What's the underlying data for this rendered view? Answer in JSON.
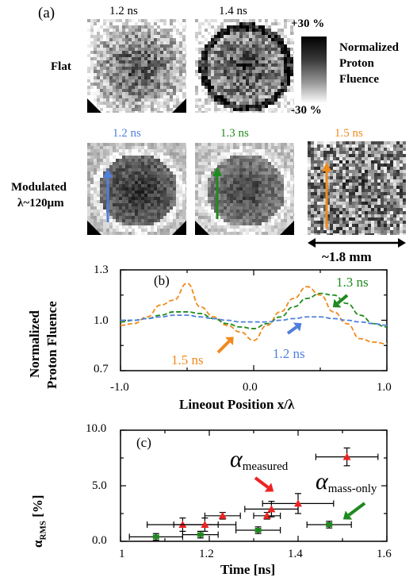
{
  "figure": {
    "panel_a": {
      "label": "(a)",
      "flat_label": "Flat",
      "modulated_label_line1": "Modulated",
      "modulated_label_line2": "λ~120μm",
      "flat_times": [
        "1.2 ns",
        "1.4 ns"
      ],
      "mod_times": [
        "1.2 ns",
        "1.3 ns",
        "1.5 ns"
      ],
      "colorbar_top": "+30 %",
      "colorbar_bottom": "-30 %",
      "colorbar_title": [
        "Normalized",
        "Proton",
        "Fluence"
      ],
      "scale_label": "~1.8 mm",
      "colors": {
        "blue": "#4f7fdc",
        "green": "#1e8a1e",
        "orange": "#f08a1e"
      }
    },
    "panel_b": {
      "label": "(b)",
      "ylabel_line1": "Normalized",
      "ylabel_line2": "Proton Fluence",
      "xlabel": "Lineout Position x/λ",
      "yticks": [
        "1.3",
        "1.0",
        "0.7"
      ],
      "xticks": [
        "-1.0",
        "0.0",
        "1.0"
      ],
      "annotations": [
        "1.3 ns",
        "1.5 ns",
        "1.2 ns"
      ]
    },
    "panel_c": {
      "label": "(c)",
      "ylabel": "α",
      "ylabel_sub": "RMS",
      "ylabel_unit": "[%]",
      "xlabel": "Time [ns]",
      "yticks": [
        "10.0",
        "5.0",
        "0.0"
      ],
      "xticks": [
        "1",
        "1.2",
        "1.4",
        "1.6"
      ],
      "ann_measured": "α",
      "ann_measured_sub": "measured",
      "ann_mass": "α",
      "ann_mass_sub": "mass-only"
    }
  },
  "chart_data": [
    {
      "type": "line",
      "panel": "(b)",
      "xlabel": "Lineout Position x/λ",
      "ylabel": "Normalized Proton Fluence",
      "xlim": [
        -1.0,
        1.0
      ],
      "ylim": [
        0.7,
        1.3
      ],
      "x": [
        -1.0,
        -0.9,
        -0.8,
        -0.7,
        -0.6,
        -0.5,
        -0.4,
        -0.3,
        -0.2,
        -0.1,
        0.0,
        0.1,
        0.2,
        0.3,
        0.4,
        0.5,
        0.6,
        0.7,
        0.8,
        0.9,
        1.0
      ],
      "series": [
        {
          "name": "1.5 ns",
          "color": "#f08a1e",
          "values": [
            0.97,
            0.98,
            1.02,
            1.09,
            1.12,
            1.22,
            1.08,
            1.02,
            0.97,
            0.93,
            0.88,
            0.97,
            1.05,
            1.13,
            1.2,
            1.15,
            1.05,
            0.98,
            0.89,
            0.87,
            0.86
          ]
        },
        {
          "name": "1.3 ns",
          "color": "#1e8a1e",
          "values": [
            0.99,
            1.0,
            1.01,
            1.03,
            1.05,
            1.05,
            1.04,
            1.01,
            0.98,
            0.96,
            0.95,
            0.98,
            1.02,
            1.08,
            1.13,
            1.16,
            1.15,
            1.1,
            1.03,
            0.98,
            0.96
          ]
        },
        {
          "name": "1.2 ns",
          "color": "#4f7fdc",
          "values": [
            1.0,
            1.0,
            1.01,
            1.02,
            1.03,
            1.03,
            1.02,
            1.01,
            1.0,
            0.99,
            0.99,
            0.99,
            1.0,
            1.01,
            1.02,
            1.02,
            1.01,
            1.0,
            0.99,
            0.98,
            0.97
          ]
        }
      ]
    },
    {
      "type": "scatter",
      "panel": "(c)",
      "xlabel": "Time [ns]",
      "ylabel": "αRMS [%]",
      "xlim": [
        1.0,
        1.6
      ],
      "ylim": [
        0.0,
        10.0
      ],
      "series": [
        {
          "name": "αmeasured",
          "color": "#ee2222",
          "marker": "triangle",
          "points": [
            {
              "x": 1.14,
              "y": 1.5,
              "xerr": 0.08,
              "yerr": 0.6
            },
            {
              "x": 1.19,
              "y": 1.5,
              "xerr": 0.07,
              "yerr": 0.6
            },
            {
              "x": 1.23,
              "y": 2.3,
              "xerr": 0.04,
              "yerr": 0.3
            },
            {
              "x": 1.33,
              "y": 2.3,
              "xerr": 0.03,
              "yerr": 0.3
            },
            {
              "x": 1.34,
              "y": 2.9,
              "xerr": 0.06,
              "yerr": 0.7
            },
            {
              "x": 1.4,
              "y": 3.4,
              "xerr": 0.08,
              "yerr": 0.9
            },
            {
              "x": 1.51,
              "y": 7.6,
              "xerr": 0.07,
              "yerr": 0.8
            }
          ]
        },
        {
          "name": "αmass-only",
          "color": "#1e8a1e",
          "marker": "square",
          "points": [
            {
              "x": 1.08,
              "y": 0.4,
              "xerr": 0.06,
              "yerr": 0.3
            },
            {
              "x": 1.18,
              "y": 0.6,
              "xerr": 0.04,
              "yerr": 0.3
            },
            {
              "x": 1.31,
              "y": 1.0,
              "xerr": 0.05,
              "yerr": 0.3
            },
            {
              "x": 1.47,
              "y": 1.5,
              "xerr": 0.05,
              "yerr": 0.3
            }
          ]
        }
      ]
    }
  ]
}
